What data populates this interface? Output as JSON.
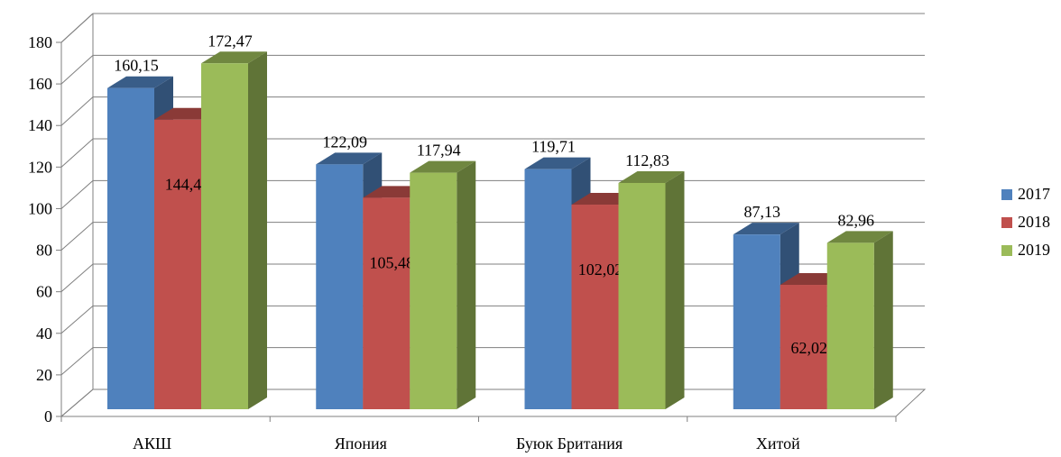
{
  "chart_data": {
    "type": "bar",
    "categories": [
      "АКШ",
      "Япония",
      "Буюк Британия",
      "Хитой"
    ],
    "series": [
      {
        "name": "2017",
        "values": [
          160.15,
          122.09,
          119.71,
          87.13
        ],
        "labels": [
          "160,15",
          "122,09",
          "119,71",
          "87,13"
        ],
        "color": "#4f81bd"
      },
      {
        "name": "2018",
        "values": [
          144.4,
          105.48,
          102.02,
          62.02
        ],
        "labels": [
          "144,4",
          "105,48",
          "102,02",
          "62,02"
        ],
        "color": "#c0504d"
      },
      {
        "name": "2019",
        "values": [
          172.47,
          117.94,
          112.83,
          82.96
        ],
        "labels": [
          "172,47",
          "117,94",
          "112,83",
          "82,96"
        ],
        "color": "#9bbb59"
      }
    ],
    "yticks": [
      "0",
      "20",
      "40",
      "60",
      "80",
      "100",
      "120",
      "140",
      "160",
      "180"
    ],
    "ylim": [
      0,
      180
    ],
    "grid": true,
    "legend_position": "right",
    "style": "3d-clustered-column"
  }
}
